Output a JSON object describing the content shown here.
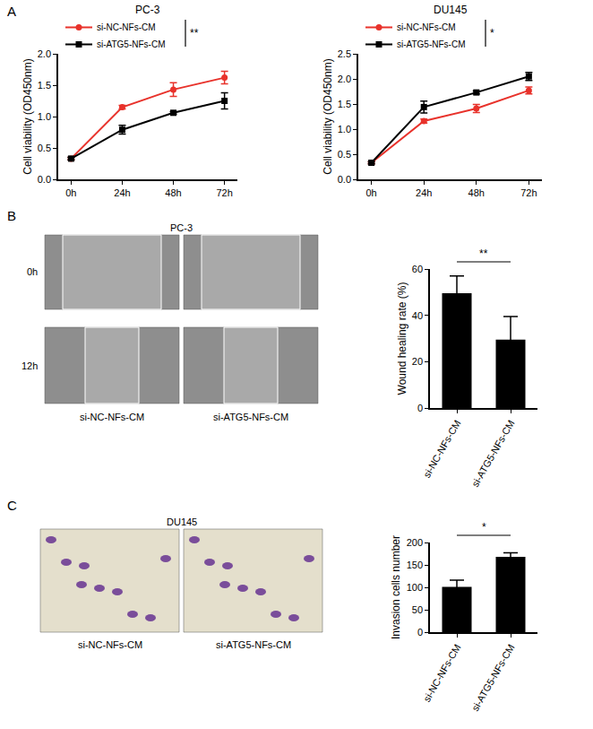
{
  "panel_labels": [
    "A",
    "B",
    "C"
  ],
  "image_panels": [
    {
      "title": "PC-3",
      "row_labels": [
        "0h",
        "12h"
      ],
      "column_labels": [
        "si-NC-NFs-CM",
        "si-ATG5-NFs-CM"
      ]
    },
    {
      "title": "DU145",
      "column_labels": [
        "si-NC-NFs-CM",
        "si-ATG5-NFs-CM"
      ]
    }
  ],
  "chart_data": [
    {
      "type": "line",
      "title": "PC-3",
      "y_label": "Cell viability (OD450nm)",
      "categories": [
        "0h",
        "24h",
        "48h",
        "72h"
      ],
      "series": [
        {
          "name": "si-NC-NFs-CM",
          "color": "#e8322b",
          "marker": "circle",
          "line_style": "solid",
          "values": [
            0.33,
            1.15,
            1.43,
            1.62
          ],
          "errors": [
            0.02,
            0.03,
            0.11,
            0.1
          ]
        },
        {
          "name": "si-ATG5-NFs-CM",
          "color": "#000000",
          "marker": "square",
          "line_style": "solid",
          "values": [
            0.33,
            0.79,
            1.06,
            1.25
          ],
          "errors": [
            0.02,
            0.07,
            0.02,
            0.13
          ]
        }
      ],
      "ylim": [
        0,
        2.0
      ],
      "yticks": [
        {
          "value": 0,
          "label": "0.0"
        },
        {
          "value": 0.5,
          "label": "0.5"
        },
        {
          "value": 1.0,
          "label": "1.0"
        },
        {
          "value": 1.5,
          "label": "1.5"
        },
        {
          "value": 2.0,
          "label": "2.0"
        }
      ],
      "legend": "upper left",
      "grid": false,
      "annotations": [
        "**"
      ]
    },
    {
      "type": "line",
      "title": "DU145",
      "y_label": "Cell viability (OD450nm)",
      "categories": [
        "0h",
        "24h",
        "48h",
        "72h"
      ],
      "series": [
        {
          "name": "si-NC-NFs-CM",
          "color": "#e8322b",
          "marker": "circle",
          "line_style": "solid",
          "values": [
            0.33,
            1.16,
            1.41,
            1.77
          ],
          "errors": [
            0.02,
            0.04,
            0.08,
            0.07
          ]
        },
        {
          "name": "si-ATG5-NFs-CM",
          "color": "#000000",
          "marker": "square",
          "line_style": "solid",
          "values": [
            0.33,
            1.44,
            1.73,
            2.05
          ],
          "errors": [
            0.02,
            0.12,
            0.03,
            0.08
          ]
        }
      ],
      "ylim": [
        0,
        2.5
      ],
      "yticks": [
        {
          "value": 0,
          "label": "0.0"
        },
        {
          "value": 0.5,
          "label": "0.5"
        },
        {
          "value": 1.0,
          "label": "1.0"
        },
        {
          "value": 1.5,
          "label": "1.5"
        },
        {
          "value": 2.0,
          "label": "2.0"
        },
        {
          "value": 2.5,
          "label": "2.5"
        }
      ],
      "legend": "upper left",
      "grid": false,
      "annotations": [
        "*"
      ]
    },
    {
      "type": "bar",
      "y_label": "Wound healing rate (%)",
      "categories": [
        "si-NC-NFs-CM",
        "si-ATG5-NFs-CM"
      ],
      "values": [
        49.5,
        29.5
      ],
      "errors": [
        7.5,
        10
      ],
      "color": "#000000",
      "ylim": [
        0,
        60
      ],
      "yticks": [
        0,
        20,
        40,
        60
      ],
      "grid": false,
      "annotations": [
        "**"
      ]
    },
    {
      "type": "bar",
      "y_label": "Invasion cells number",
      "categories": [
        "si-NC-NFs-CM",
        "si-ATG5-NFs-CM"
      ],
      "values": [
        101,
        168
      ],
      "errors": [
        15,
        9
      ],
      "color": "#000000",
      "ylim": [
        0,
        200
      ],
      "yticks": [
        0,
        50,
        100,
        150,
        200
      ],
      "grid": false,
      "annotations": [
        "*"
      ]
    }
  ]
}
